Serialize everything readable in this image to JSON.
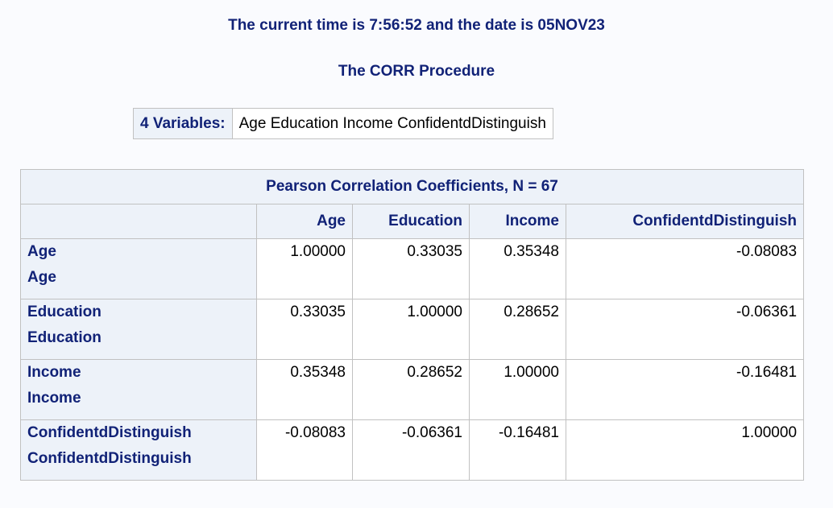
{
  "header": {
    "title_time": "The current time is 7:56:52 and the date is 05NOV23",
    "procedure_title": "The CORR Procedure"
  },
  "variables_table": {
    "label": "4 Variables:",
    "value": "Age Education Income ConfidentdDistinguish"
  },
  "correlation_table": {
    "caption": "Pearson Correlation Coefficients, N = 67",
    "columns": [
      "Age",
      "Education",
      "Income",
      "ConfidentdDistinguish"
    ],
    "rows": [
      {
        "name": "Age",
        "label": "Age",
        "values": [
          "1.00000",
          "0.33035",
          "0.35348",
          "-0.08083"
        ]
      },
      {
        "name": "Education",
        "label": "Education",
        "values": [
          "0.33035",
          "1.00000",
          "0.28652",
          "-0.06361"
        ]
      },
      {
        "name": "Income",
        "label": "Income",
        "values": [
          "0.35348",
          "0.28652",
          "1.00000",
          "-0.16481"
        ]
      },
      {
        "name": "ConfidentdDistinguish",
        "label": "ConfidentdDistinguish",
        "values": [
          "-0.08083",
          "-0.06361",
          "-0.16481",
          "1.00000"
        ]
      }
    ]
  },
  "colors": {
    "heading_text": "#112277",
    "header_background": "#edf2f9",
    "page_background": "#fafbfe",
    "border": "#c1c1c1"
  }
}
